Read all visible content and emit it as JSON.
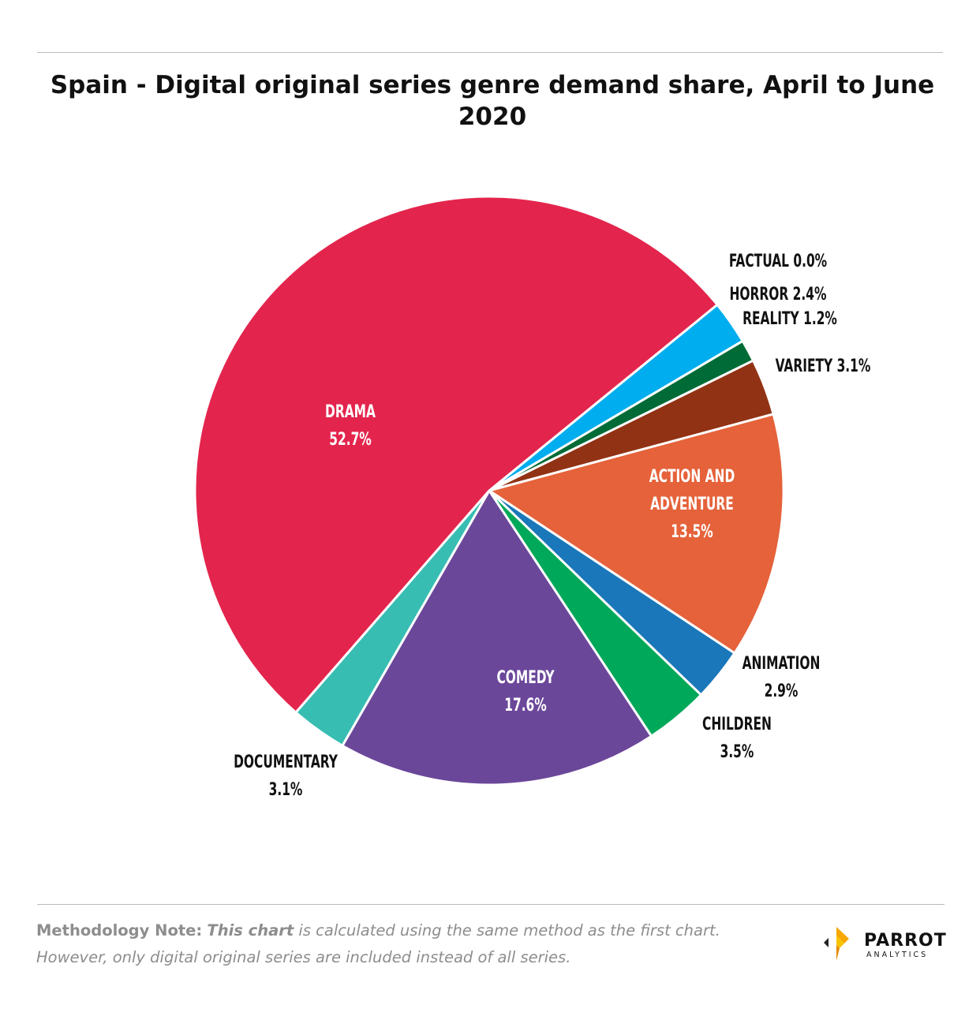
{
  "title": "Spain - Digital original series genre demand share, April to June 2020",
  "note": {
    "lead": "Methodology Note:",
    "emph": "This chart",
    "rest1": " is calculated using the same method as the first chart.",
    "line2": "However, only digital original series are included instead of all series."
  },
  "logo": {
    "word": "PARROT",
    "sub": "ANALYTICS",
    "icon": "parrot-analytics-logo-icon"
  },
  "chart_data": {
    "type": "pie",
    "title": "Spain - Digital original series genre demand share, April to June 2020",
    "unit": "%",
    "slices": [
      {
        "name": "FACTUAL",
        "value": 0.0,
        "display": "0.0%",
        "color": "#f5b400"
      },
      {
        "name": "HORROR",
        "value": 2.4,
        "display": "2.4%",
        "color": "#00adee"
      },
      {
        "name": "REALITY",
        "value": 1.2,
        "display": "1.2%",
        "color": "#006b36"
      },
      {
        "name": "VARIETY",
        "value": 3.1,
        "display": "3.1%",
        "color": "#923214"
      },
      {
        "name": "ACTION AND ADVENTURE",
        "label_lines": [
          "ACTION AND",
          "ADVENTURE"
        ],
        "value": 13.5,
        "display": "13.5%",
        "color": "#e5623a"
      },
      {
        "name": "ANIMATION",
        "value": 2.9,
        "display": "2.9%",
        "color": "#1a77b9"
      },
      {
        "name": "CHILDREN",
        "value": 3.5,
        "display": "3.5%",
        "color": "#00a859"
      },
      {
        "name": "COMEDY",
        "value": 17.6,
        "display": "17.6%",
        "color": "#6b479a"
      },
      {
        "name": "DOCUMENTARY",
        "value": 3.1,
        "display": "3.1%",
        "color": "#38bdb3"
      },
      {
        "name": "DRAMA",
        "value": 52.7,
        "display": "52.7%",
        "color": "#e3254d"
      }
    ]
  }
}
